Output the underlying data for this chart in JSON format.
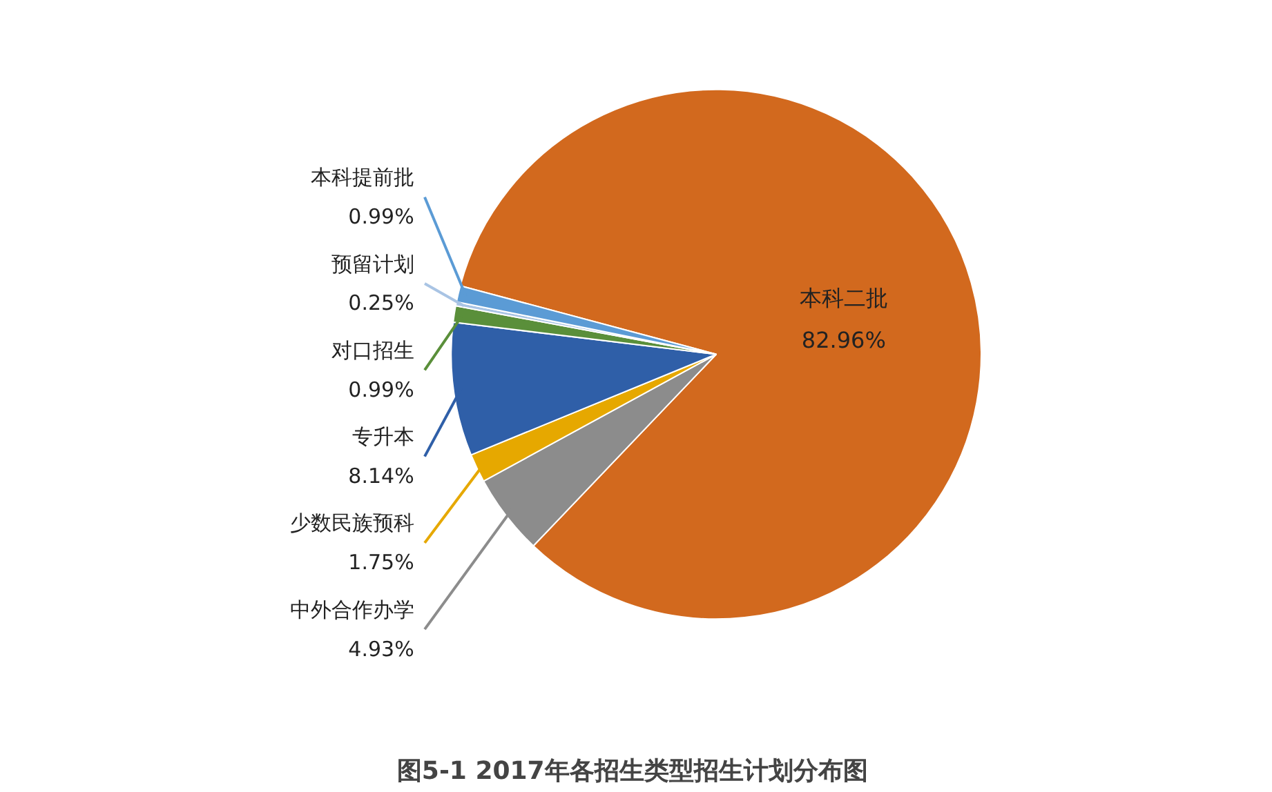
{
  "chart_data": {
    "type": "pie",
    "title": "图5-1  2017年各招生类型招生计划分布图",
    "categories": [
      "本科二批",
      "中外合作办学",
      "少数民族预科",
      "专升本",
      "对口招生",
      "预留计划",
      "本科提前批"
    ],
    "values": [
      82.96,
      4.93,
      1.75,
      8.14,
      0.99,
      0.25,
      0.99
    ],
    "value_labels": [
      "82.96%",
      "4.93%",
      "1.75%",
      "8.14%",
      "0.99%",
      "0.25%",
      "0.99%"
    ],
    "colors": [
      "#d2691e",
      "#8c8c8c",
      "#e6a800",
      "#2f5fa8",
      "#5a8f3a",
      "#a9c4e4",
      "#5b9bd5"
    ]
  }
}
